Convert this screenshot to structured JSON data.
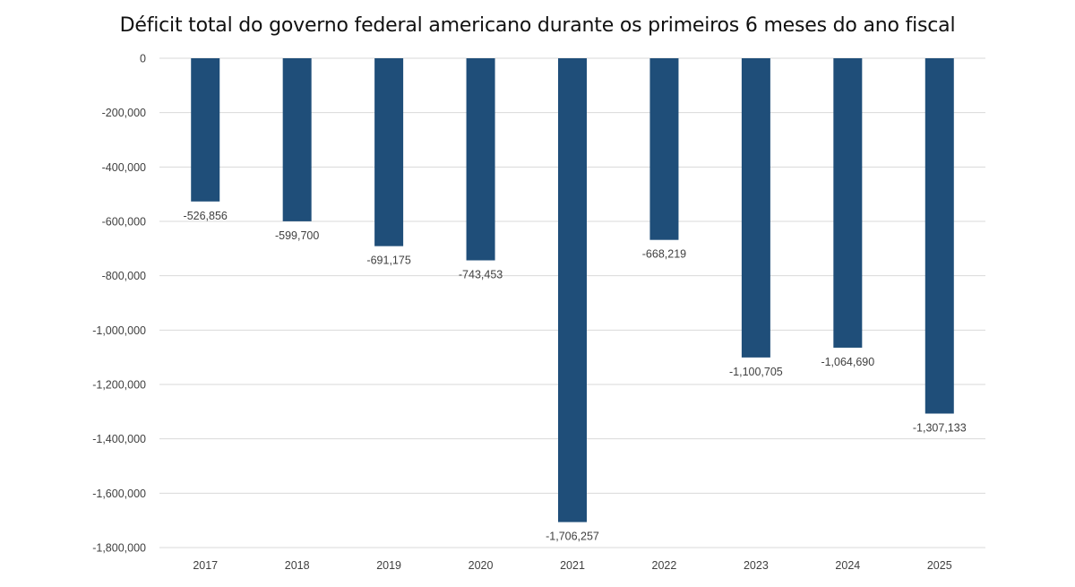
{
  "chart_data": {
    "type": "bar",
    "title": "Déficit total do governo federal americano durante os primeiros 6 meses do ano fiscal",
    "xlabel": "",
    "ylabel": "",
    "categories": [
      "2017",
      "2018",
      "2019",
      "2020",
      "2021",
      "2022",
      "2023",
      "2024",
      "2025"
    ],
    "values": [
      -526856,
      -599700,
      -691175,
      -743453,
      -1706257,
      -668219,
      -1100705,
      -1064690,
      -1307133
    ],
    "data_labels": [
      "-526,856",
      "-599,700",
      "-691,175",
      "-743,453",
      "-1,706,257",
      "-668,219",
      "-1,100,705",
      "-1,064,690",
      "-1,307,133"
    ],
    "ylim": [
      -1800000,
      0
    ],
    "yticks": [
      0,
      -200000,
      -400000,
      -600000,
      -800000,
      -1000000,
      -1200000,
      -1400000,
      -1600000,
      -1800000
    ],
    "ytick_labels": [
      "0",
      "-200,000",
      "-400,000",
      "-600,000",
      "-800,000",
      "-1,000,000",
      "-1,200,000",
      "-1,400,000",
      "-1,600,000",
      "-1,800,000"
    ],
    "grid": true,
    "legend": "none",
    "colors": {
      "bar": "#1f4e79",
      "grid": "#d9d9d9",
      "text": "#404040"
    }
  }
}
